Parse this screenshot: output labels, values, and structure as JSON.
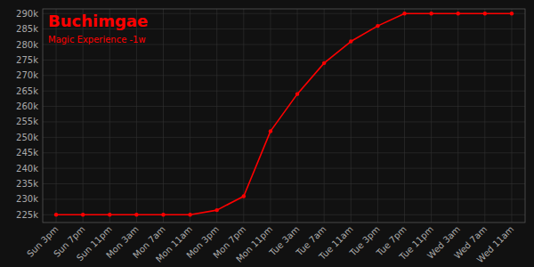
{
  "chart_data": {
    "type": "line",
    "title": "Buchimgae",
    "subtitle": "Magic Experience -1w",
    "categories": [
      "Sun 3pm",
      "Sun 7pm",
      "Sun 11pm",
      "Mon 3am",
      "Mon 7am",
      "Mon 11am",
      "Mon 3pm",
      "Mon 7pm",
      "Mon 11pm",
      "Tue 3am",
      "Tue 7am",
      "Tue 11am",
      "Tue 3pm",
      "Tue 7pm",
      "Tue 11pm",
      "Wed 3am",
      "Wed 7am",
      "Wed 11am"
    ],
    "values": [
      225000,
      225000,
      225000,
      225000,
      225000,
      225000,
      226500,
      231000,
      252000,
      264000,
      274000,
      281000,
      286000,
      290000,
      290000,
      290000,
      290000,
      290000
    ],
    "color": "#ff0000",
    "marker": "circle",
    "ylim": [
      222500,
      291500
    ],
    "yticks": [
      {
        "value": 225000,
        "label": "225k"
      },
      {
        "value": 230000,
        "label": "230k"
      },
      {
        "value": 235000,
        "label": "235k"
      },
      {
        "value": 240000,
        "label": "240k"
      },
      {
        "value": 245000,
        "label": "245k"
      },
      {
        "value": 250000,
        "label": "250k"
      },
      {
        "value": 255000,
        "label": "255k"
      },
      {
        "value": 260000,
        "label": "260k"
      },
      {
        "value": 265000,
        "label": "265k"
      },
      {
        "value": 270000,
        "label": "270k"
      },
      {
        "value": 275000,
        "label": "275k"
      },
      {
        "value": 280000,
        "label": "280k"
      },
      {
        "value": 285000,
        "label": "285k"
      },
      {
        "value": 290000,
        "label": "290k"
      }
    ],
    "grid": true
  }
}
